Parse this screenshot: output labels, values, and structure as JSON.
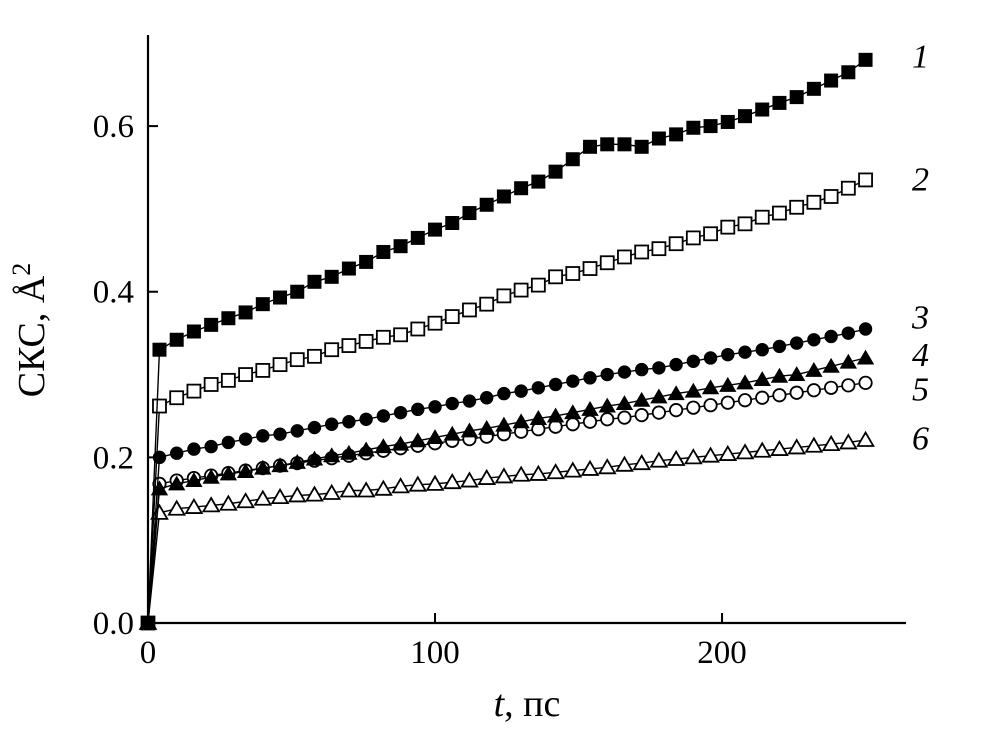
{
  "chart_data": {
    "type": "line",
    "title": "",
    "xlabel": "t, пс",
    "xlabel_italic": "t",
    "xlabel_rest": ", пс",
    "ylabel": "СКС, Å²",
    "ylabel_main": "СКС, Å",
    "ylabel_sup": "2",
    "xlim": [
      0,
      262
    ],
    "ylim": [
      0,
      0.71
    ],
    "x_ticks": [
      0,
      100,
      200
    ],
    "x_tick_labels": [
      "0",
      "100",
      "200"
    ],
    "y_ticks": [
      0.0,
      0.2,
      0.4,
      0.6
    ],
    "y_tick_labels": [
      "0.0",
      "0.2",
      "0.4",
      "0.6"
    ],
    "grid": false,
    "legend_position": "right-inline-numbers",
    "colors": {
      "foreground": "#000000",
      "background": "#ffffff"
    },
    "t": [
      0,
      4,
      10,
      16,
      22,
      28,
      34,
      40,
      46,
      52,
      58,
      64,
      70,
      76,
      82,
      88,
      94,
      100,
      106,
      112,
      118,
      124,
      130,
      136,
      142,
      148,
      154,
      160,
      166,
      172,
      178,
      184,
      190,
      196,
      202,
      208,
      214,
      220,
      226,
      232,
      238,
      244,
      250
    ],
    "series": [
      {
        "label": "1",
        "marker": "square",
        "fill": "filled",
        "label_v": 0.685,
        "values": [
          0,
          0.33,
          0.342,
          0.352,
          0.36,
          0.368,
          0.375,
          0.385,
          0.393,
          0.4,
          0.412,
          0.418,
          0.428,
          0.436,
          0.448,
          0.455,
          0.465,
          0.475,
          0.483,
          0.495,
          0.505,
          0.515,
          0.525,
          0.533,
          0.545,
          0.56,
          0.575,
          0.578,
          0.578,
          0.575,
          0.585,
          0.59,
          0.598,
          0.6,
          0.605,
          0.612,
          0.62,
          0.628,
          0.635,
          0.645,
          0.655,
          0.665,
          0.68
        ]
      },
      {
        "label": "2",
        "marker": "square",
        "fill": "open",
        "label_v": 0.537,
        "values": [
          0,
          0.262,
          0.272,
          0.28,
          0.288,
          0.293,
          0.3,
          0.305,
          0.312,
          0.318,
          0.322,
          0.33,
          0.335,
          0.34,
          0.345,
          0.348,
          0.355,
          0.362,
          0.37,
          0.378,
          0.385,
          0.395,
          0.402,
          0.408,
          0.418,
          0.422,
          0.428,
          0.435,
          0.442,
          0.448,
          0.452,
          0.458,
          0.465,
          0.47,
          0.478,
          0.482,
          0.49,
          0.495,
          0.502,
          0.508,
          0.515,
          0.525,
          0.535
        ]
      },
      {
        "label": "3",
        "marker": "circle",
        "fill": "filled",
        "label_v": 0.37,
        "values": [
          0,
          0.2,
          0.205,
          0.21,
          0.213,
          0.218,
          0.222,
          0.226,
          0.228,
          0.232,
          0.236,
          0.24,
          0.243,
          0.246,
          0.25,
          0.254,
          0.258,
          0.261,
          0.265,
          0.268,
          0.272,
          0.277,
          0.28,
          0.284,
          0.288,
          0.292,
          0.296,
          0.3,
          0.303,
          0.306,
          0.308,
          0.312,
          0.316,
          0.32,
          0.324,
          0.327,
          0.33,
          0.334,
          0.338,
          0.342,
          0.346,
          0.35,
          0.355
        ]
      },
      {
        "label": "4",
        "marker": "triangle",
        "fill": "filled",
        "label_v": 0.325,
        "values": [
          0,
          0.162,
          0.168,
          0.172,
          0.176,
          0.18,
          0.183,
          0.187,
          0.19,
          0.194,
          0.198,
          0.202,
          0.205,
          0.209,
          0.213,
          0.216,
          0.22,
          0.224,
          0.228,
          0.232,
          0.235,
          0.239,
          0.243,
          0.247,
          0.25,
          0.254,
          0.258,
          0.262,
          0.265,
          0.269,
          0.273,
          0.277,
          0.28,
          0.284,
          0.287,
          0.29,
          0.294,
          0.298,
          0.3,
          0.305,
          0.31,
          0.315,
          0.32
        ]
      },
      {
        "label": "5",
        "marker": "circle",
        "fill": "open",
        "label_v": 0.283,
        "values": [
          0,
          0.168,
          0.172,
          0.175,
          0.178,
          0.181,
          0.184,
          0.187,
          0.19,
          0.193,
          0.196,
          0.199,
          0.202,
          0.205,
          0.208,
          0.211,
          0.214,
          0.217,
          0.22,
          0.222,
          0.225,
          0.228,
          0.231,
          0.234,
          0.237,
          0.24,
          0.243,
          0.246,
          0.248,
          0.251,
          0.254,
          0.257,
          0.26,
          0.263,
          0.266,
          0.269,
          0.272,
          0.275,
          0.278,
          0.281,
          0.284,
          0.287,
          0.29
        ]
      },
      {
        "label": "6",
        "marker": "triangle",
        "fill": "open",
        "label_v": 0.224,
        "values": [
          0,
          0.133,
          0.138,
          0.14,
          0.142,
          0.144,
          0.147,
          0.15,
          0.152,
          0.154,
          0.155,
          0.157,
          0.16,
          0.16,
          0.162,
          0.165,
          0.167,
          0.168,
          0.17,
          0.172,
          0.175,
          0.177,
          0.179,
          0.18,
          0.182,
          0.184,
          0.186,
          0.188,
          0.191,
          0.193,
          0.196,
          0.198,
          0.2,
          0.202,
          0.204,
          0.206,
          0.208,
          0.21,
          0.212,
          0.214,
          0.216,
          0.218,
          0.221
        ]
      }
    ]
  }
}
